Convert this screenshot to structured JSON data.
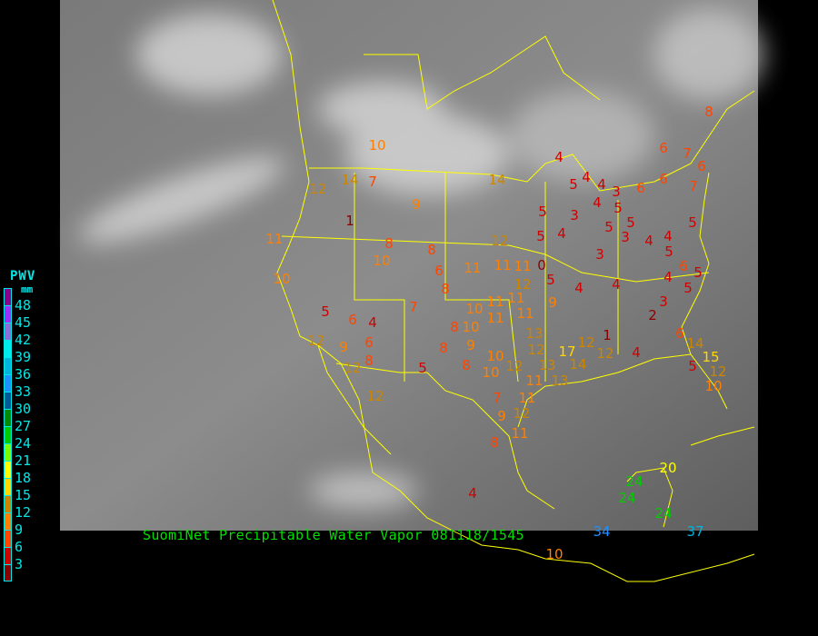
{
  "title": "SuomiNet Precipitable Water Vapor 081118/1545",
  "legend": {
    "title": "PWV",
    "unit": "mm",
    "labels": [
      "48",
      "45",
      "42",
      "39",
      "36",
      "33",
      "30",
      "27",
      "24",
      "21",
      "18",
      "15",
      "12",
      "9",
      "6",
      "3"
    ],
    "colors": [
      "#8b008b",
      "#9b30ff",
      "#8a6fd8",
      "#00ecec",
      "#00b4e0",
      "#1e90ff",
      "#005a9a",
      "#008b00",
      "#00cd00",
      "#7cfc00",
      "#ffff00",
      "#ffd700",
      "#cd8500",
      "#ff8000",
      "#ff4500",
      "#d00000",
      "#8b0000"
    ]
  },
  "colors": {
    "boundaries": "#ffff00",
    "title": "#00e000",
    "legend_text": "#00e8e8",
    "background": "#000000"
  },
  "stations": [
    10,
    12,
    14,
    7,
    9,
    1,
    11,
    10,
    8,
    8,
    6,
    8,
    10,
    5,
    6,
    4,
    7,
    6,
    12,
    9,
    12,
    8,
    12,
    5,
    8,
    8,
    8,
    9,
    10,
    10,
    10,
    10,
    11,
    11,
    12,
    14,
    11,
    11,
    11,
    0,
    12,
    11,
    11,
    9,
    5,
    5,
    5,
    4,
    4,
    5,
    4,
    3,
    4,
    4,
    3,
    5,
    5,
    3,
    5,
    6,
    6,
    6,
    7,
    6,
    7,
    5,
    4,
    5,
    4,
    3,
    4,
    4,
    6,
    4,
    5,
    3,
    5,
    2,
    8,
    7,
    9,
    12,
    11,
    11,
    8,
    4,
    12,
    11,
    13,
    12,
    13,
    17,
    13,
    14,
    12,
    12,
    1,
    4,
    6,
    14,
    15,
    12,
    5,
    10,
    10,
    34,
    37,
    24,
    24,
    20,
    24
  ]
}
